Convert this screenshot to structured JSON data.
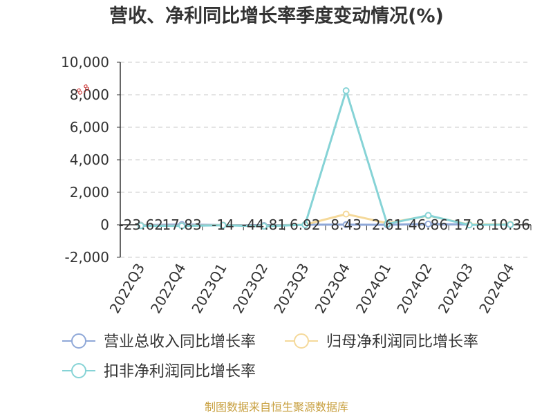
{
  "chart_data": {
    "type": "line",
    "title": "营收、净利同比增长率季度变动情况(%)",
    "categories": [
      "2022Q3",
      "2022Q4",
      "2023Q1",
      "2023Q2",
      "2023Q3",
      "2023Q4",
      "2024Q1",
      "2024Q2",
      "2024Q3",
      "2024Q4"
    ],
    "ylim": [
      -2000,
      10000
    ],
    "yticks": [
      "10,000",
      "8,000",
      "6,000",
      "4,000",
      "2,000",
      "0",
      "-2,000"
    ],
    "ytick_values": [
      10000,
      8000,
      6000,
      4000,
      2000,
      0,
      -2000
    ],
    "grid": true,
    "legend_position": "bottom",
    "series": [
      {
        "name": "营业总收入同比增长率",
        "color": "#8fa8d8",
        "values": [
          -23.62,
          17.83,
          -14,
          -44.81,
          6.92,
          8.43,
          2.61,
          46.86,
          17.8,
          10.36
        ]
      },
      {
        "name": "归母净利润同比增长率",
        "color": "#f5d99a",
        "values": [
          -40,
          -60,
          -20,
          -80,
          10,
          660,
          100,
          560,
          20,
          30
        ]
      },
      {
        "name": "扣非净利润同比增长率",
        "color": "#86d3d6",
        "values": [
          -60,
          -70,
          -30,
          -90,
          0,
          8250,
          50,
          580,
          -10,
          10
        ]
      }
    ],
    "data_labels": [
      "-23.62",
      "17.83",
      "-14",
      "-44.81",
      "6.92",
      "8.43",
      "2.61",
      "46.86",
      "17.8",
      "10.36"
    ],
    "annotation": "8,8"
  },
  "source_text": "制图数据来自恒生聚源数据库"
}
